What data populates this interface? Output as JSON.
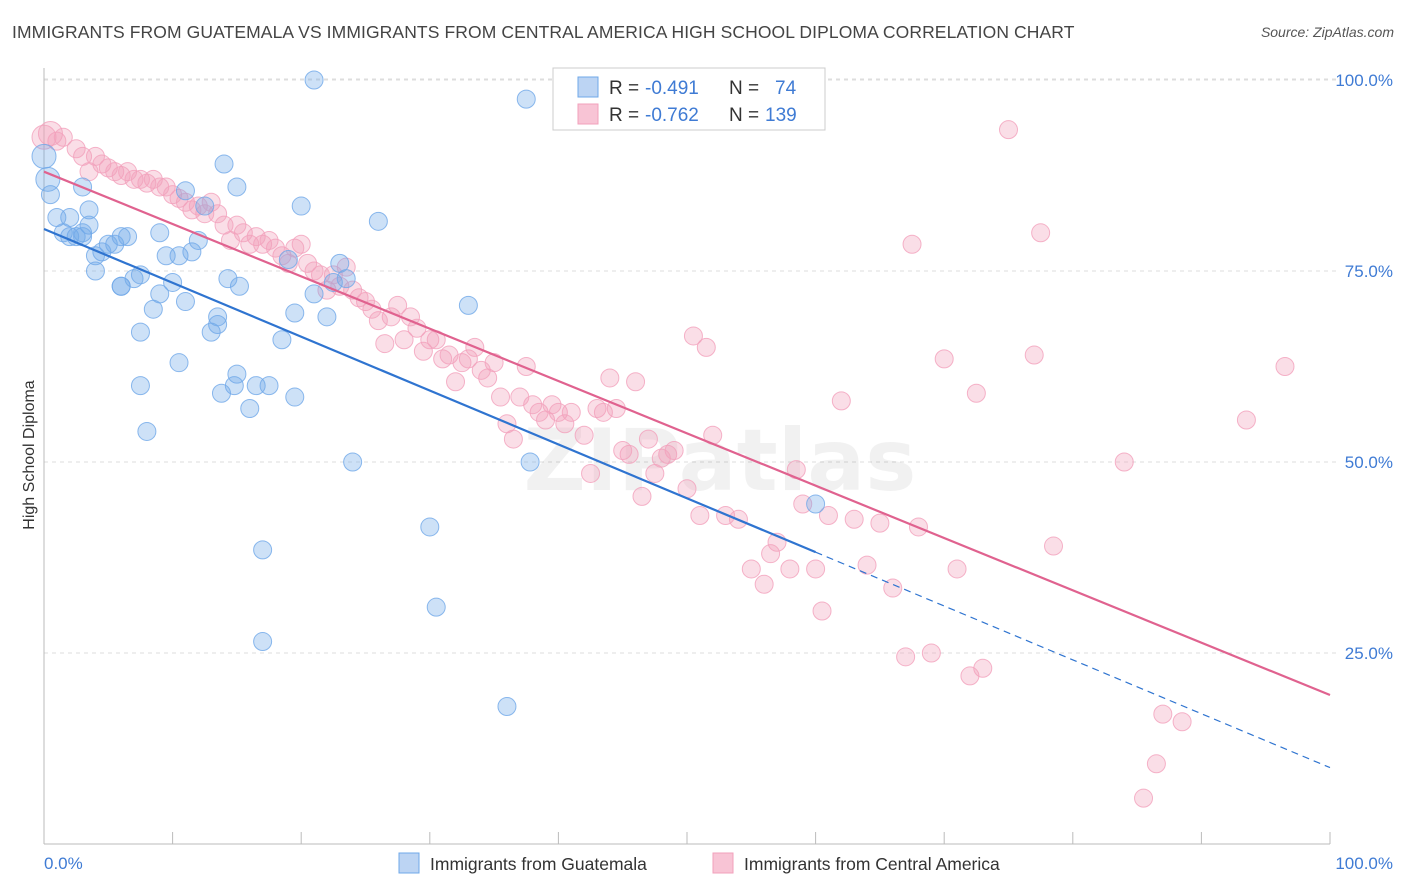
{
  "title": "IMMIGRANTS FROM GUATEMALA VS IMMIGRANTS FROM CENTRAL AMERICA HIGH SCHOOL DIPLOMA CORRELATION CHART",
  "source": "Source: ZipAtlas.com",
  "watermark": "ZIPatlas",
  "colors": {
    "blue": "#6fa8e8",
    "blue_line": "#2f74d0",
    "pink": "#f2a0bb",
    "pink_line": "#e0628f",
    "tick_text": "#3f7bd4",
    "grid": "#dddddd"
  },
  "chart_data": {
    "type": "scatter",
    "title": "IMMIGRANTS FROM GUATEMALA VS IMMIGRANTS FROM CENTRAL AMERICA HIGH SCHOOL DIPLOMA CORRELATION CHART",
    "xlabel": "",
    "ylabel": "High School Diploma",
    "xlim": [
      0,
      100
    ],
    "ylim": [
      0,
      103
    ],
    "x_tick_labels": [
      "0.0%",
      "100.0%"
    ],
    "y_ticks": [
      25,
      50,
      75,
      100
    ],
    "y_tick_labels": [
      "25.0%",
      "50.0%",
      "75.0%",
      "100.0%"
    ],
    "legend": [
      {
        "r_label": "R =",
        "r": "-0.491",
        "n_label": "N =",
        "n": "74"
      },
      {
        "r_label": "R =",
        "r": "-0.762",
        "n_label": "N =",
        "n": "139"
      }
    ],
    "series": [
      {
        "name": "Immigrants from Guatemala",
        "color": "#6fa8e8",
        "trend": {
          "x0": 0,
          "y0": 80.5,
          "x1": 60,
          "y1": 38.2,
          "dash_x1": 100,
          "dash_y1": 10
        },
        "points": [
          [
            0,
            90
          ],
          [
            0.3,
            87
          ],
          [
            0.5,
            85
          ],
          [
            1,
            82
          ],
          [
            1.5,
            80
          ],
          [
            2,
            82
          ],
          [
            2,
            79.5
          ],
          [
            2.5,
            79.5
          ],
          [
            3,
            80
          ],
          [
            3,
            79.5
          ],
          [
            3.5,
            81
          ],
          [
            3.5,
            83
          ],
          [
            4,
            77
          ],
          [
            4.5,
            77.5
          ],
          [
            5,
            78.5
          ],
          [
            5.5,
            78.5
          ],
          [
            6,
            79.5
          ],
          [
            6,
            73
          ],
          [
            6.5,
            79.5
          ],
          [
            7,
            74
          ],
          [
            7.5,
            74.5
          ],
          [
            7.5,
            67
          ],
          [
            8,
            54
          ],
          [
            8.5,
            70
          ],
          [
            9,
            80
          ],
          [
            9,
            72
          ],
          [
            9.5,
            77
          ],
          [
            10,
            73.5
          ],
          [
            10.5,
            63
          ],
          [
            10.5,
            77
          ],
          [
            11,
            85.5
          ],
          [
            11,
            71
          ],
          [
            11.5,
            77.5
          ],
          [
            12,
            79
          ],
          [
            12.5,
            83.5
          ],
          [
            13,
            67
          ],
          [
            13.5,
            68
          ],
          [
            13.5,
            69
          ],
          [
            13.8,
            59
          ],
          [
            14,
            89
          ],
          [
            14.3,
            74
          ],
          [
            14.8,
            60
          ],
          [
            15,
            61.5
          ],
          [
            15,
            86
          ],
          [
            15.2,
            73
          ],
          [
            16,
            57
          ],
          [
            16.5,
            60
          ],
          [
            17,
            38.5
          ],
          [
            17,
            26.5
          ],
          [
            17.5,
            60
          ],
          [
            18.5,
            66
          ],
          [
            19,
            76.5
          ],
          [
            19.5,
            58.5
          ],
          [
            19.5,
            69.5
          ],
          [
            20,
            83.5
          ],
          [
            21,
            72
          ],
          [
            21,
            100
          ],
          [
            22,
            69
          ],
          [
            22.5,
            73.5
          ],
          [
            23,
            76
          ],
          [
            23.5,
            74
          ],
          [
            24,
            50
          ],
          [
            26,
            81.5
          ],
          [
            30,
            41.5
          ],
          [
            30.5,
            31
          ],
          [
            33,
            70.5
          ],
          [
            36,
            18
          ],
          [
            37.5,
            97.5
          ],
          [
            37.8,
            50
          ],
          [
            60,
            44.5
          ],
          [
            4,
            75
          ],
          [
            6,
            73
          ],
          [
            7.5,
            60
          ],
          [
            3,
            86
          ]
        ]
      },
      {
        "name": "Immigrants from Central America",
        "color": "#f2a0bb",
        "trend": {
          "x0": 0,
          "y0": 88,
          "x1": 100,
          "y1": 19.5
        },
        "points": [
          [
            0,
            92.5
          ],
          [
            0.5,
            93
          ],
          [
            1,
            92
          ],
          [
            1.5,
            92.5
          ],
          [
            2.5,
            91
          ],
          [
            3,
            90
          ],
          [
            3.5,
            88
          ],
          [
            4,
            90
          ],
          [
            4.5,
            89
          ],
          [
            5,
            88.5
          ],
          [
            5.5,
            88
          ],
          [
            6,
            87.5
          ],
          [
            6.5,
            88
          ],
          [
            7,
            87
          ],
          [
            7.5,
            87
          ],
          [
            8,
            86.5
          ],
          [
            8.5,
            87
          ],
          [
            9,
            86
          ],
          [
            9.5,
            86
          ],
          [
            10,
            85
          ],
          [
            10.5,
            84.5
          ],
          [
            11,
            84
          ],
          [
            11.5,
            83
          ],
          [
            12,
            83.5
          ],
          [
            12.5,
            82.5
          ],
          [
            13,
            84
          ],
          [
            13.5,
            82.5
          ],
          [
            14,
            81
          ],
          [
            14.5,
            79
          ],
          [
            15,
            81
          ],
          [
            15.5,
            80
          ],
          [
            16,
            78.5
          ],
          [
            16.5,
            79.5
          ],
          [
            17,
            78.5
          ],
          [
            17.5,
            79
          ],
          [
            18,
            78
          ],
          [
            18.5,
            77
          ],
          [
            19,
            76
          ],
          [
            19.5,
            78
          ],
          [
            20,
            78.5
          ],
          [
            20.5,
            76
          ],
          [
            21,
            75
          ],
          [
            21.5,
            74.5
          ],
          [
            22,
            72.5
          ],
          [
            22.5,
            74.5
          ],
          [
            23,
            73
          ],
          [
            23.5,
            75.5
          ],
          [
            24,
            72.5
          ],
          [
            24.5,
            71.5
          ],
          [
            25,
            71
          ],
          [
            25.5,
            70
          ],
          [
            26,
            68.5
          ],
          [
            26.5,
            65.5
          ],
          [
            27,
            69
          ],
          [
            27.5,
            70.5
          ],
          [
            28,
            66
          ],
          [
            28.5,
            69
          ],
          [
            29,
            67.5
          ],
          [
            29.5,
            64.5
          ],
          [
            30,
            66
          ],
          [
            30.5,
            66
          ],
          [
            31,
            63.5
          ],
          [
            31.5,
            64
          ],
          [
            32,
            60.5
          ],
          [
            32.5,
            63
          ],
          [
            33,
            63.5
          ],
          [
            33.5,
            65
          ],
          [
            34,
            62
          ],
          [
            34.5,
            61
          ],
          [
            35,
            63
          ],
          [
            35.5,
            58.5
          ],
          [
            36,
            55
          ],
          [
            36.5,
            53
          ],
          [
            37,
            58.5
          ],
          [
            37.5,
            62.5
          ],
          [
            38,
            57.5
          ],
          [
            38.5,
            56.5
          ],
          [
            39,
            55.5
          ],
          [
            39.5,
            57.5
          ],
          [
            40,
            56.5
          ],
          [
            40.5,
            55
          ],
          [
            41,
            56.5
          ],
          [
            42,
            53.5
          ],
          [
            42.5,
            48.5
          ],
          [
            43,
            57
          ],
          [
            43.5,
            56.5
          ],
          [
            44,
            61
          ],
          [
            44.5,
            57
          ],
          [
            45,
            51.5
          ],
          [
            45.5,
            51
          ],
          [
            46,
            60.5
          ],
          [
            46.5,
            45.5
          ],
          [
            47,
            53
          ],
          [
            47.5,
            48.5
          ],
          [
            48,
            50.5
          ],
          [
            48.5,
            51
          ],
          [
            49,
            51.5
          ],
          [
            50,
            46.5
          ],
          [
            50.5,
            66.5
          ],
          [
            51,
            43
          ],
          [
            51.5,
            65
          ],
          [
            52,
            53.5
          ],
          [
            53,
            43
          ],
          [
            54,
            42.5
          ],
          [
            55,
            36
          ],
          [
            56,
            34
          ],
          [
            56.5,
            38
          ],
          [
            57,
            39.5
          ],
          [
            58,
            36
          ],
          [
            58.5,
            49
          ],
          [
            59,
            44.5
          ],
          [
            60,
            36
          ],
          [
            60.5,
            30.5
          ],
          [
            61,
            43
          ],
          [
            62,
            58
          ],
          [
            63,
            42.5
          ],
          [
            64,
            36.5
          ],
          [
            65,
            42
          ],
          [
            66,
            33.5
          ],
          [
            67,
            24.5
          ],
          [
            67.5,
            78.5
          ],
          [
            68,
            41.5
          ],
          [
            69,
            25
          ],
          [
            70,
            63.5
          ],
          [
            71,
            36
          ],
          [
            72,
            22
          ],
          [
            72.5,
            59
          ],
          [
            73,
            23
          ],
          [
            75,
            93.5
          ],
          [
            77,
            64
          ],
          [
            77.5,
            80
          ],
          [
            78.5,
            39
          ],
          [
            84,
            50
          ],
          [
            85.5,
            6
          ],
          [
            86.5,
            10.5
          ],
          [
            87,
            17
          ],
          [
            88.5,
            16
          ],
          [
            93.5,
            55.5
          ],
          [
            96.5,
            62.5
          ]
        ]
      }
    ]
  },
  "legend_bottom": [
    {
      "label": "Immigrants from Guatemala"
    },
    {
      "label": "Immigrants from Central America"
    }
  ]
}
